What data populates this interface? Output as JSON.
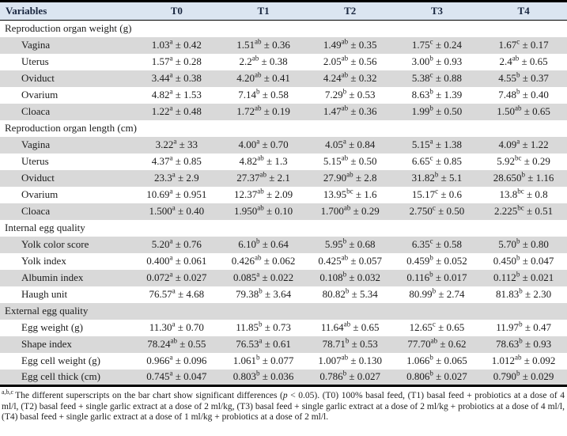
{
  "colors": {
    "header_bg": "#dbe5f1",
    "stripe_gray": "#d9d9d9",
    "border_black": "#000000",
    "header_text": "#1a2740"
  },
  "table": {
    "columns": [
      "Variables",
      "T0",
      "T1",
      "T2",
      "T3",
      "T4"
    ],
    "sections": [
      {
        "title": "Reproduction organ weight (g)",
        "rows": [
          {
            "label": "Vagina",
            "values": [
              {
                "mean": "1.03",
                "sup": "a",
                "sd": "0.42"
              },
              {
                "mean": "1.51",
                "sup": "ab",
                "sd": "0.36"
              },
              {
                "mean": "1.49",
                "sup": "ab",
                "sd": "0.35"
              },
              {
                "mean": "1.75",
                "sup": "c",
                "sd": "0.24"
              },
              {
                "mean": "1.67",
                "sup": "c",
                "sd": "0.17"
              }
            ]
          },
          {
            "label": "Uterus",
            "values": [
              {
                "mean": "1.57",
                "sup": "a",
                "sd": "0.28"
              },
              {
                "mean": "2.2",
                "sup": "ab",
                "sd": "0.38"
              },
              {
                "mean": "2.05",
                "sup": "ab",
                "sd": "0.56"
              },
              {
                "mean": "3.00",
                "sup": "b",
                "sd": "0.93"
              },
              {
                "mean": "2.4",
                "sup": "ab",
                "sd": "0.65"
              }
            ]
          },
          {
            "label": "Oviduct",
            "values": [
              {
                "mean": "3.44",
                "sup": "a",
                "sd": "0.38"
              },
              {
                "mean": "4.20",
                "sup": "ab",
                "sd": "0.41"
              },
              {
                "mean": "4.24",
                "sup": "ab",
                "sd": "0.32"
              },
              {
                "mean": "5.38",
                "sup": "c",
                "sd": "0.88"
              },
              {
                "mean": "4.55",
                "sup": "b",
                "sd": "0.37"
              }
            ]
          },
          {
            "label": "Ovarium",
            "values": [
              {
                "mean": "4.82",
                "sup": "a",
                "sd": "1.53"
              },
              {
                "mean": "7.14",
                "sup": "b",
                "sd": "0.58"
              },
              {
                "mean": "7.29",
                "sup": "b",
                "sd": "0.53"
              },
              {
                "mean": "8.63",
                "sup": "b",
                "sd": "1.39"
              },
              {
                "mean": "7.48",
                "sup": "b",
                "sd": "0.40"
              }
            ]
          },
          {
            "label": "Cloaca",
            "values": [
              {
                "mean": "1.22",
                "sup": "a",
                "sd": "0.48"
              },
              {
                "mean": "1.72",
                "sup": "ab",
                "sd": "0.19"
              },
              {
                "mean": "1.47",
                "sup": "ab",
                "sd": "0.36"
              },
              {
                "mean": "1.99",
                "sup": "b",
                "sd": "0.50"
              },
              {
                "mean": "1.50",
                "sup": "ab",
                "sd": "0.65"
              }
            ]
          }
        ]
      },
      {
        "title": "Reproduction organ length (cm)",
        "rows": [
          {
            "label": "Vagina",
            "values": [
              {
                "mean": "3.22",
                "sup": "a",
                "sd": "33"
              },
              {
                "mean": "4.00",
                "sup": "a",
                "sd": "0.70"
              },
              {
                "mean": "4.05",
                "sup": "a",
                "sd": "0.84"
              },
              {
                "mean": "5.15",
                "sup": "a",
                "sd": "1.38"
              },
              {
                "mean": "4.09",
                "sup": "a",
                "sd": "1.22"
              }
            ]
          },
          {
            "label": "Uterus",
            "values": [
              {
                "mean": "4.37",
                "sup": "a",
                "sd": "0.85"
              },
              {
                "mean": "4.82",
                "sup": "ab",
                "sd": "1.3"
              },
              {
                "mean": "5.15",
                "sup": "ab",
                "sd": "0.50"
              },
              {
                "mean": "6.65",
                "sup": "c",
                "sd": "0.85"
              },
              {
                "mean": "5.92",
                "sup": "bc",
                "sd": "0.29"
              }
            ]
          },
          {
            "label": "Oviduct",
            "values": [
              {
                "mean": "23.3",
                "sup": "a",
                "sd": "2.9"
              },
              {
                "mean": "27.37",
                "sup": "ab",
                "sd": "2.1"
              },
              {
                "mean": "27.90",
                "sup": "ab",
                "sd": "2.8"
              },
              {
                "mean": "31.82",
                "sup": "b",
                "sd": "5.1"
              },
              {
                "mean": "28.650",
                "sup": "b",
                "sd": "1.16"
              }
            ]
          },
          {
            "label": "Ovarium",
            "values": [
              {
                "mean": "10.69",
                "sup": "a",
                "sd": "0.951"
              },
              {
                "mean": "12.37",
                "sup": "ab",
                "sd": "2.09"
              },
              {
                "mean": "13.95",
                "sup": "bc",
                "sd": "1.6"
              },
              {
                "mean": "15.17",
                "sup": "c",
                "sd": "0.6"
              },
              {
                "mean": "13.8",
                "sup": "bc",
                "sd": "0.8"
              }
            ]
          },
          {
            "label": "Cloaca",
            "values": [
              {
                "mean": "1.500",
                "sup": "a",
                "sd": "0.40"
              },
              {
                "mean": "1.950",
                "sup": "ab",
                "sd": "0.10"
              },
              {
                "mean": "1.700",
                "sup": "ab",
                "sd": "0.29"
              },
              {
                "mean": "2.750",
                "sup": "c",
                "sd": "0.50"
              },
              {
                "mean": "2.225",
                "sup": "bc",
                "sd": "0.51"
              }
            ]
          }
        ]
      },
      {
        "title": "Internal egg quality",
        "rows": [
          {
            "label": "Yolk color score",
            "values": [
              {
                "mean": "5.20",
                "sup": "a",
                "sd": "0.76"
              },
              {
                "mean": "6.10",
                "sup": "b",
                "sd": "0.64"
              },
              {
                "mean": "5.95",
                "sup": "b",
                "sd": "0.68"
              },
              {
                "mean": "6.35",
                "sup": "c",
                "sd": "0.58"
              },
              {
                "mean": "5.70",
                "sup": "b",
                "sd": "0.80"
              }
            ]
          },
          {
            "label": "Yolk index",
            "values": [
              {
                "mean": "0.400",
                "sup": "a",
                "sd": "0.061"
              },
              {
                "mean": "0.426",
                "sup": "ab",
                "sd": "0.062"
              },
              {
                "mean": "0.425",
                "sup": "ab",
                "sd": "0.057"
              },
              {
                "mean": "0.459",
                "sup": "b",
                "sd": "0.052"
              },
              {
                "mean": "0.450",
                "sup": "b",
                "sd": "0.047"
              }
            ]
          },
          {
            "label": "Albumin index",
            "values": [
              {
                "mean": "0.072",
                "sup": "a",
                "sd": "0.027"
              },
              {
                "mean": "0.085",
                "sup": "a",
                "sd": "0.022"
              },
              {
                "mean": "0.108",
                "sup": "b",
                "sd": "0.032"
              },
              {
                "mean": "0.116",
                "sup": "b",
                "sd": "0.017"
              },
              {
                "mean": "0.112",
                "sup": "b",
                "sd": "0.021"
              }
            ]
          },
          {
            "label": "Haugh unit",
            "values": [
              {
                "mean": "76.57",
                "sup": "a",
                "sd": "4.68"
              },
              {
                "mean": "79.38",
                "sup": "b",
                "sd": "3.64"
              },
              {
                "mean": "80.82",
                "sup": "b",
                "sd": "5.34"
              },
              {
                "mean": "80.99",
                "sup": "b",
                "sd": "2.74"
              },
              {
                "mean": "81.83",
                "sup": "b",
                "sd": "2.30"
              }
            ]
          }
        ]
      },
      {
        "title": "External egg quality",
        "rows": [
          {
            "label": "Egg weight (g)",
            "values": [
              {
                "mean": "11.30",
                "sup": "a",
                "sd": "0.70"
              },
              {
                "mean": "11.85",
                "sup": "b",
                "sd": "0.73"
              },
              {
                "mean": "11.64",
                "sup": "ab",
                "sd": "0.65"
              },
              {
                "mean": "12.65",
                "sup": "c",
                "sd": "0.65"
              },
              {
                "mean": "11.97",
                "sup": "b",
                "sd": "0.47"
              }
            ]
          },
          {
            "label": "Shape index",
            "values": [
              {
                "mean": "78.24",
                "sup": "ab",
                "sd": "0.55"
              },
              {
                "mean": "76.53",
                "sup": "a",
                "sd": "0.61"
              },
              {
                "mean": "78.71",
                "sup": "b",
                "sd": "0.53"
              },
              {
                "mean": "77.70",
                "sup": "ab",
                "sd": "0.62"
              },
              {
                "mean": "78.63",
                "sup": "b",
                "sd": "0.93"
              }
            ]
          },
          {
            "label": "Egg cell weight (g)",
            "values": [
              {
                "mean": "0.966",
                "sup": "a",
                "sd": "0.096"
              },
              {
                "mean": "1.061",
                "sup": "b",
                "sd": "0.077"
              },
              {
                "mean": "1.007",
                "sup": "ab",
                "sd": "0.130"
              },
              {
                "mean": "1.066",
                "sup": "b",
                "sd": "0.065"
              },
              {
                "mean": "1.012",
                "sup": "ab",
                "sd": "0.092"
              }
            ]
          },
          {
            "label": "Egg cell thick (cm)",
            "values": [
              {
                "mean": "0.745",
                "sup": "a",
                "sd": "0.047"
              },
              {
                "mean": "0.803",
                "sup": "b",
                "sd": "0.036"
              },
              {
                "mean": "0.786",
                "sup": "b",
                "sd": "0.027"
              },
              {
                "mean": "0.806",
                "sup": "b",
                "sd": "0.027"
              },
              {
                "mean": "0.790",
                "sup": "b",
                "sd": "0.029"
              }
            ]
          }
        ]
      }
    ]
  },
  "footnote": {
    "marker": "a,b,c",
    "part1": "The different superscripts on the bar chart show significant differences (",
    "p_symbol": "p",
    "part2": " < 0.05). (T0) 100% basal feed, (T1) basal feed + probiotics at a dose of 4 ml/l, (T2) basal feed + single garlic extract at a dose of 2 ml/kg, (T3) basal feed + single garlic extract at a dose of 2 ml/kg + probiotics at a dose of 4 ml/l, (T4) basal feed + single garlic extract at a dose of 1 ml/kg + probiotics at a dose of 2 ml/l."
  }
}
